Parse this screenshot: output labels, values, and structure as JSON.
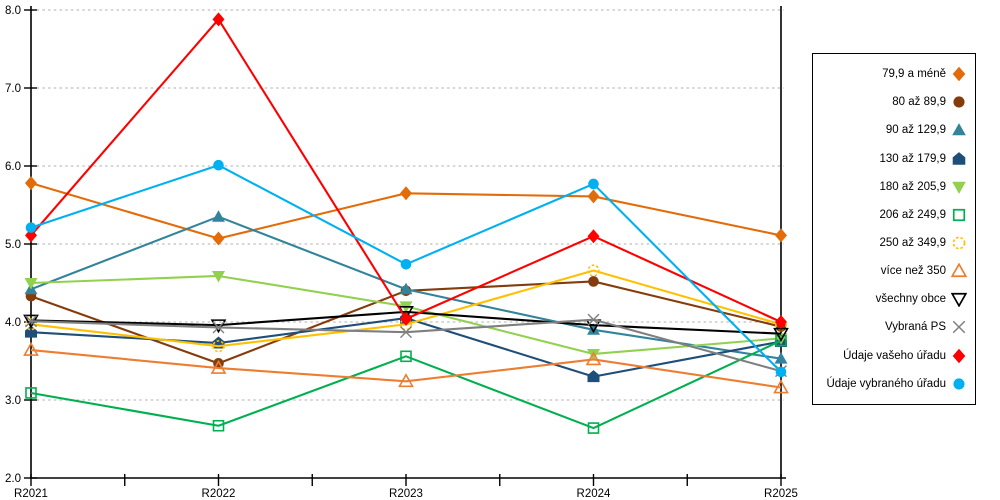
{
  "chart_data": {
    "type": "line",
    "title": "",
    "xlabel": "",
    "ylabel": "",
    "categories": [
      "R2021",
      "R2022",
      "R2023",
      "R2024",
      "R2025"
    ],
    "ylim": [
      2.0,
      8.0
    ],
    "y_tick_labels": [
      "2.0",
      "3.0",
      "4.0",
      "5.0",
      "6.0",
      "7.0",
      "8.0"
    ],
    "grid": {
      "horizontal": true,
      "style": "dashed",
      "color": "#BFBFBF"
    },
    "legend_position": "right",
    "series": [
      {
        "name": "79,9 a méně",
        "color": "#E36C0A",
        "marker": "diamond",
        "fill": "filled",
        "dashed": false,
        "values": [
          5.78,
          5.07,
          5.65,
          5.61,
          5.11
        ]
      },
      {
        "name": "80 až 89,9",
        "color": "#843C0C",
        "marker": "circle",
        "fill": "filled",
        "dashed": false,
        "values": [
          4.33,
          3.47,
          4.4,
          4.52,
          3.94
        ]
      },
      {
        "name": "90 až 129,9",
        "color": "#31849B",
        "marker": "triangle-up",
        "fill": "filled",
        "dashed": false,
        "values": [
          4.42,
          5.35,
          4.42,
          3.9,
          3.53
        ]
      },
      {
        "name": "130 až 179,9",
        "color": "#1F4E79",
        "marker": "pentagon",
        "fill": "filled",
        "dashed": false,
        "values": [
          3.87,
          3.73,
          4.05,
          3.3,
          3.75
        ]
      },
      {
        "name": "180 až 205,9",
        "color": "#92D050",
        "marker": "triangle-down",
        "fill": "filled",
        "dashed": false,
        "values": [
          4.5,
          4.59,
          4.2,
          3.59,
          3.79
        ]
      },
      {
        "name": "206 až 249,9",
        "color": "#00B050",
        "marker": "square",
        "fill": "open",
        "dashed": false,
        "values": [
          3.09,
          2.67,
          3.56,
          2.64,
          3.76
        ]
      },
      {
        "name": "250 až 349,9",
        "color": "#FFC000",
        "marker": "circle",
        "fill": "open",
        "dashed": true,
        "values": [
          3.97,
          3.69,
          3.97,
          4.66,
          3.97
        ]
      },
      {
        "name": "více než 350",
        "color": "#ED7D31",
        "marker": "triangle-up",
        "fill": "open",
        "dashed": false,
        "values": [
          3.64,
          3.41,
          3.24,
          3.52,
          3.16
        ]
      },
      {
        "name": "všechny obce",
        "color": "#000000",
        "marker": "triangle-down",
        "fill": "open",
        "dashed": false,
        "values": [
          4.02,
          3.96,
          4.13,
          3.96,
          3.85
        ]
      },
      {
        "name": "Vybraná PS",
        "color": "#7F7F7F",
        "marker": "x",
        "fill": "open",
        "dashed": false,
        "values": [
          4.01,
          3.93,
          3.87,
          4.03,
          3.37
        ]
      },
      {
        "name": "Údaje vašeho úřadu",
        "color": "#FF0000",
        "marker": "diamond",
        "fill": "filled",
        "dashed": false,
        "values": [
          5.11,
          7.88,
          4.04,
          5.1,
          4.0
        ]
      },
      {
        "name": "Údaje vybraného úřadu",
        "color": "#00B0F0",
        "marker": "circle",
        "fill": "filled",
        "dashed": false,
        "values": [
          5.21,
          6.01,
          4.74,
          5.77,
          3.36
        ]
      }
    ]
  }
}
